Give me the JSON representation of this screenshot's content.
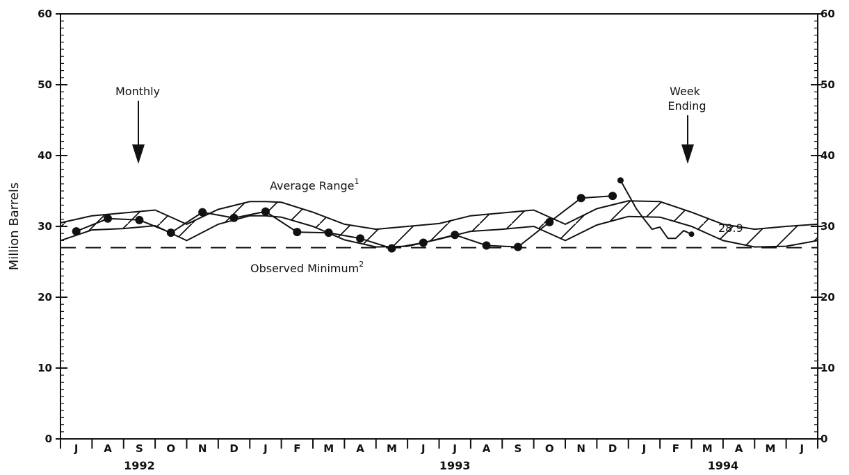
{
  "chart_data": {
    "type": "line",
    "ylabel": "Million Barrels",
    "ylim": [
      0,
      60
    ],
    "y_ticks": [
      "0",
      "10",
      "20",
      "30",
      "40",
      "50",
      "60"
    ],
    "months": [
      "J",
      "A",
      "S",
      "O",
      "N",
      "D",
      "J",
      "F",
      "M",
      "A",
      "M",
      "J",
      "J",
      "A",
      "S",
      "O",
      "N",
      "D",
      "J",
      "F",
      "M",
      "A",
      "M",
      "J"
    ],
    "years": [
      {
        "label": "1992",
        "center_month": 2
      },
      {
        "label": "1993",
        "center_month": 12
      },
      {
        "label": "1994",
        "center_month": 20.5
      }
    ],
    "observed_minimum": 27.0,
    "average_range": [
      {
        "x": 0,
        "upper": 30.5,
        "lower": 28.0
      },
      {
        "x": 1,
        "upper": 31.5,
        "lower": 29.5
      },
      {
        "x": 2,
        "upper": 31.9,
        "lower": 29.7
      },
      {
        "x": 3,
        "upper": 32.3,
        "lower": 30.1
      },
      {
        "x": 4,
        "upper": 30.3,
        "lower": 28.0
      },
      {
        "x": 5,
        "upper": 32.4,
        "lower": 30.3
      },
      {
        "x": 6,
        "upper": 33.5,
        "lower": 31.5
      },
      {
        "x": 6.5,
        "upper": 33.5,
        "lower": 31.5
      },
      {
        "x": 7,
        "upper": 33.4,
        "lower": 31.3
      },
      {
        "x": 8,
        "upper": 32.0,
        "lower": 30.0
      },
      {
        "x": 9,
        "upper": 30.3,
        "lower": 28.1
      },
      {
        "x": 10,
        "upper": 29.6,
        "lower": 27.1
      },
      {
        "x": 11,
        "upper": 30.0,
        "lower": 27.2
      },
      {
        "x": 12,
        "upper": 30.4,
        "lower": 28.2
      },
      {
        "x": 13,
        "upper": 31.5,
        "lower": 29.3
      },
      {
        "x": 14,
        "upper": 31.9,
        "lower": 29.6
      },
      {
        "x": 15,
        "upper": 32.3,
        "lower": 30.0
      },
      {
        "x": 16,
        "upper": 30.3,
        "lower": 28.0
      },
      {
        "x": 17,
        "upper": 32.5,
        "lower": 30.2
      },
      {
        "x": 18,
        "upper": 33.6,
        "lower": 31.4
      },
      {
        "x": 19,
        "upper": 33.5,
        "lower": 31.3
      },
      {
        "x": 20,
        "upper": 32.0,
        "lower": 30.0
      },
      {
        "x": 21,
        "upper": 30.3,
        "lower": 28.0
      },
      {
        "x": 22,
        "upper": 29.6,
        "lower": 27.1
      },
      {
        "x": 23,
        "upper": 30.0,
        "lower": 27.2
      },
      {
        "x": 24,
        "upper": 30.3,
        "lower": 28.0
      }
    ],
    "monthly_series": [
      {
        "x": 0.5,
        "y": 29.3
      },
      {
        "x": 1.5,
        "y": 31.1
      },
      {
        "x": 2.5,
        "y": 30.9
      },
      {
        "x": 3.5,
        "y": 29.1
      },
      {
        "x": 4.5,
        "y": 32.0
      },
      {
        "x": 5.5,
        "y": 31.2
      },
      {
        "x": 6.5,
        "y": 32.1
      },
      {
        "x": 7.5,
        "y": 29.2
      },
      {
        "x": 8.5,
        "y": 29.1
      },
      {
        "x": 9.5,
        "y": 28.3
      },
      {
        "x": 10.5,
        "y": 26.9
      },
      {
        "x": 11.5,
        "y": 27.7
      },
      {
        "x": 12.5,
        "y": 28.8
      },
      {
        "x": 13.5,
        "y": 27.3
      },
      {
        "x": 14.5,
        "y": 27.1
      },
      {
        "x": 15.5,
        "y": 30.6
      },
      {
        "x": 16.5,
        "y": 34.0
      },
      {
        "x": 17.5,
        "y": 34.3
      }
    ],
    "weekly_series": [
      {
        "x": 17.75,
        "y": 36.5
      },
      {
        "x": 18.0,
        "y": 34.5
      },
      {
        "x": 18.25,
        "y": 32.5
      },
      {
        "x": 18.5,
        "y": 31.0
      },
      {
        "x": 18.75,
        "y": 29.6
      },
      {
        "x": 19.0,
        "y": 29.9
      },
      {
        "x": 19.25,
        "y": 28.3
      },
      {
        "x": 19.5,
        "y": 28.3
      },
      {
        "x": 19.75,
        "y": 29.4
      },
      {
        "x": 20.0,
        "y": 28.9
      }
    ],
    "last_value_label": "28.9",
    "annotations": {
      "monthly": "Monthly",
      "week_ending_line1": "Week",
      "week_ending_line2": "Ending",
      "average_range": "Average Range",
      "average_range_sup": "1",
      "observed_minimum": "Observed Minimum",
      "observed_minimum_sup": "2"
    }
  }
}
